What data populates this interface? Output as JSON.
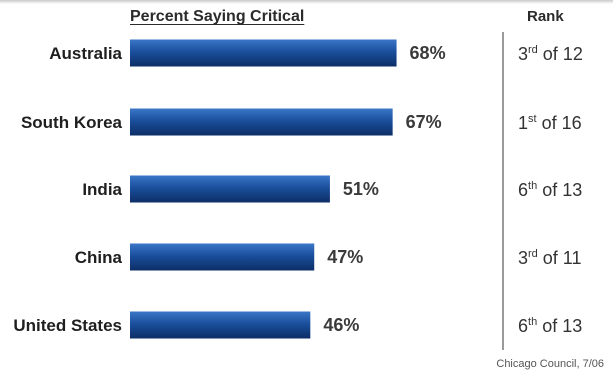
{
  "chart_data": {
    "type": "bar",
    "orientation": "horizontal",
    "categories": [
      "Australia",
      "South Korea",
      "India",
      "China",
      "United States"
    ],
    "values": [
      68,
      67,
      51,
      47,
      46
    ],
    "value_labels": [
      "68%",
      "67%",
      "51%",
      "47%",
      "46%"
    ],
    "ranks": [
      {
        "num": "3",
        "sup": "rd",
        "rest": " of 12"
      },
      {
        "num": "1",
        "sup": "st",
        "rest": " of 16"
      },
      {
        "num": "6",
        "sup": "th",
        "rest": " of 13"
      },
      {
        "num": "3",
        "sup": "rd",
        "rest": " of 11"
      },
      {
        "num": "6",
        "sup": "th",
        "rest": " of 13"
      }
    ],
    "value_heading": "Percent Saying Critical",
    "rank_heading": "Rank",
    "source": "Chicago Council, 7/06",
    "bar_color": "#1a4f9c",
    "bar_color_light": "#3a76c8",
    "bar_color_dark": "#0d2e66"
  }
}
